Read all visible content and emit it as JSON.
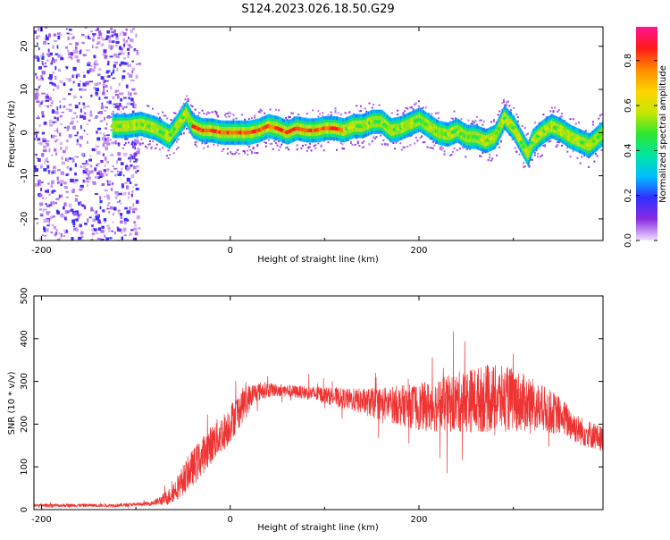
{
  "title": "S124.2023.026.18.50.G29",
  "chart_data": [
    {
      "type": "heatmap",
      "xlabel": "Height of straight line (km)",
      "ylabel": "Frequency (Hz)",
      "x_ticks": [
        -200,
        0,
        200
      ],
      "y_ticks": [
        -20,
        -10,
        0,
        10,
        20
      ],
      "xlim": [
        -208,
        395
      ],
      "ylim": [
        -25,
        24.5
      ],
      "colorbar": {
        "label": "Normalized spectral amplitude",
        "ticks": [
          0.0,
          0.2,
          0.4,
          0.6,
          0.8
        ],
        "range": [
          0,
          0.95
        ],
        "colors": [
          "#f0e0ff",
          "#8a2be2",
          "#2f2fff",
          "#00bfff",
          "#00e5a0",
          "#2ee62e",
          "#c8e600",
          "#ffd400",
          "#ff8a00",
          "#ff1a1a",
          "#ff1493"
        ]
      },
      "noise_region": {
        "x": [
          -208,
          -98
        ],
        "y": [
          -25,
          24.5
        ]
      },
      "ridge": {
        "x": [
          -125,
          -110,
          -95,
          -80,
          -65,
          -55,
          -47,
          -40,
          -30,
          -20,
          -10,
          0,
          10,
          20,
          30,
          40,
          50,
          60,
          70,
          80,
          90,
          100,
          110,
          120,
          130,
          140,
          150,
          160,
          170,
          180,
          190,
          200,
          210,
          220,
          230,
          240,
          250,
          260,
          270,
          280,
          290,
          300,
          310,
          315,
          320,
          330,
          340,
          350,
          360,
          370,
          380,
          395
        ],
        "y": [
          1.5,
          1.5,
          2,
          1,
          -1,
          2,
          4.5,
          1.5,
          0.5,
          0.5,
          0,
          0,
          0,
          0,
          0.5,
          1.5,
          1,
          0,
          1,
          0.5,
          0.5,
          1,
          1,
          0.5,
          1.5,
          1.5,
          2.5,
          2.5,
          0.5,
          1,
          2,
          3,
          1.5,
          0,
          -0.5,
          0.5,
          -1,
          -1,
          -2,
          -1,
          3.5,
          1,
          -3,
          -5,
          -2,
          0,
          1.5,
          0.5,
          -1,
          -2,
          -3,
          0
        ]
      }
    },
    {
      "type": "line",
      "xlabel": "Height of straight line (km)",
      "ylabel": "SNR (10 * v/v)",
      "x_ticks": [
        -200,
        0,
        200
      ],
      "y_ticks": [
        0,
        100,
        200,
        300,
        400,
        500
      ],
      "xlim": [
        -208,
        395
      ],
      "ylim": [
        0,
        500
      ],
      "color": "#ee3333",
      "series": [
        {
          "x": [
            -208,
            -180,
            -150,
            -120,
            -100,
            -85,
            -75,
            -65,
            -55,
            -45,
            -35,
            -25,
            -15,
            -5,
            5,
            15,
            25,
            35,
            50,
            75,
            100,
            125,
            150,
            175,
            200,
            225,
            250,
            275,
            300,
            325,
            350,
            370,
            395
          ],
          "y": [
            10,
            10,
            10,
            10,
            12,
            14,
            20,
            30,
            55,
            85,
            110,
            140,
            165,
            185,
            220,
            250,
            272,
            280,
            280,
            275,
            268,
            258,
            250,
            245,
            240,
            245,
            255,
            260,
            258,
            240,
            220,
            185,
            165
          ],
          "noise": [
            4,
            4,
            4,
            4,
            4,
            5,
            10,
            20,
            30,
            40,
            45,
            45,
            45,
            45,
            45,
            40,
            25,
            20,
            15,
            15,
            20,
            25,
            35,
            45,
            55,
            65,
            75,
            80,
            75,
            60,
            45,
            35,
            30
          ]
        }
      ]
    }
  ]
}
